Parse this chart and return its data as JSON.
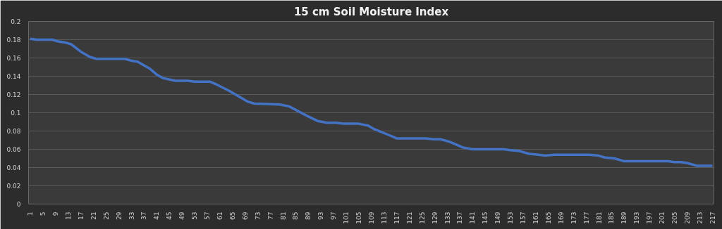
{
  "chart_data": {
    "type": "line",
    "title": "15 cm Soil Moisture Index",
    "x": [
      1,
      3,
      8,
      10,
      12,
      14,
      17,
      20,
      22,
      31,
      33,
      35,
      39,
      41,
      43,
      47,
      51,
      53,
      58,
      60,
      64,
      66,
      70,
      72,
      80,
      83,
      89,
      92,
      95,
      98,
      100,
      105,
      108,
      110,
      115,
      117,
      126,
      129,
      131,
      134,
      138,
      141,
      151,
      153,
      156,
      159,
      162,
      164,
      167,
      178,
      181,
      183,
      186,
      189,
      203,
      205,
      207,
      209,
      212,
      217
    ],
    "series": [
      {
        "color": "#4472c4",
        "values": [
          0.181,
          0.18,
          0.18,
          0.178,
          0.177,
          0.175,
          0.167,
          0.161,
          0.159,
          0.159,
          0.157,
          0.156,
          0.148,
          0.142,
          0.138,
          0.135,
          0.135,
          0.134,
          0.134,
          0.131,
          0.124,
          0.12,
          0.112,
          0.11,
          0.109,
          0.107,
          0.096,
          0.091,
          0.089,
          0.089,
          0.088,
          0.088,
          0.086,
          0.082,
          0.075,
          0.072,
          0.072,
          0.071,
          0.071,
          0.068,
          0.062,
          0.06,
          0.06,
          0.059,
          0.058,
          0.055,
          0.054,
          0.053,
          0.054,
          0.054,
          0.053,
          0.051,
          0.05,
          0.047,
          0.047,
          0.046,
          0.046,
          0.045,
          0.042,
          0.042
        ]
      }
    ],
    "xlim": [
      0.5,
      217.5
    ],
    "xticks": [
      1,
      5,
      9,
      13,
      17,
      21,
      25,
      29,
      33,
      37,
      41,
      45,
      49,
      53,
      57,
      61,
      65,
      69,
      73,
      77,
      81,
      85,
      89,
      93,
      97,
      101,
      105,
      109,
      113,
      117,
      121,
      125,
      129,
      133,
      137,
      141,
      145,
      149,
      153,
      157,
      161,
      165,
      169,
      173,
      177,
      181,
      185,
      189,
      193,
      197,
      201,
      205,
      209,
      213,
      217
    ],
    "ylim": [
      0,
      0.2
    ],
    "yticks": [
      0,
      0.02,
      0.04,
      0.06,
      0.08,
      0.1,
      0.12,
      0.14,
      0.16,
      0.18,
      0.2
    ],
    "grid": "y",
    "marker": "none",
    "line_style": "solid"
  }
}
